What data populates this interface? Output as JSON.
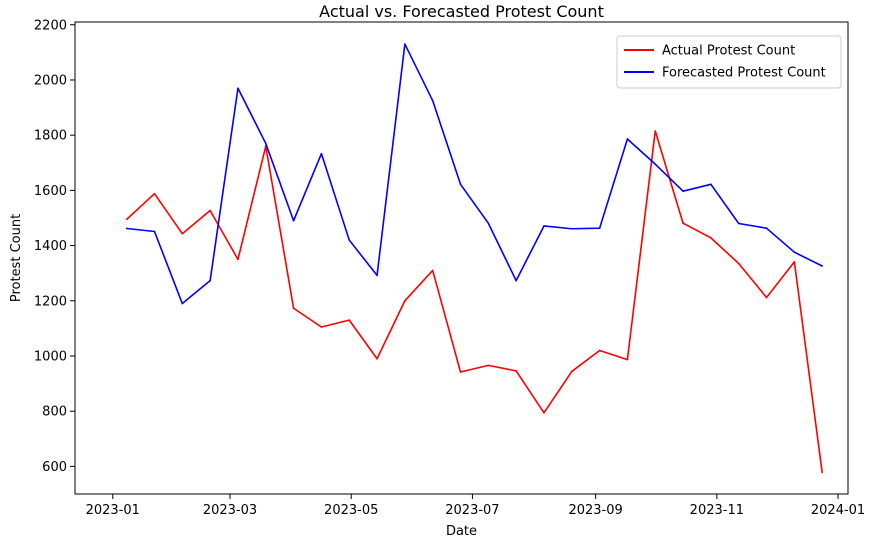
{
  "chart_data": {
    "type": "line",
    "title": "Actual vs. Forecasted Protest Count",
    "xlabel": "Date",
    "ylabel": "Protest Count",
    "x_ticks": [
      "2023-01",
      "2023-03",
      "2023-05",
      "2023-07",
      "2023-09",
      "2023-11",
      "2024-01"
    ],
    "y_ticks": [
      600,
      800,
      1000,
      1200,
      1400,
      1600,
      1800,
      2000,
      2200
    ],
    "xlim": [
      "2022-12-13",
      "2024-01-06"
    ],
    "ylim": [
      500,
      2210
    ],
    "grid": false,
    "legend_position": "top-right",
    "x": [
      "2023-01-08",
      "2023-01-22",
      "2023-02-05",
      "2023-02-19",
      "2023-03-05",
      "2023-03-19",
      "2023-04-02",
      "2023-04-16",
      "2023-04-30",
      "2023-05-14",
      "2023-05-28",
      "2023-06-11",
      "2023-06-25",
      "2023-07-09",
      "2023-07-23",
      "2023-08-06",
      "2023-08-20",
      "2023-09-03",
      "2023-09-17",
      "2023-10-01",
      "2023-10-15",
      "2023-10-29",
      "2023-11-12",
      "2023-11-26",
      "2023-12-10",
      "2023-12-24"
    ],
    "series": [
      {
        "name": "Actual Protest Count",
        "color": "#ff0000",
        "values": [
          1495,
          1588,
          1443,
          1527,
          1350,
          1760,
          1173,
          1105,
          1130,
          990,
          1200,
          1310,
          942,
          966,
          946,
          794,
          944,
          1020,
          987,
          1815,
          1481,
          1428,
          1335,
          1212,
          1341,
          578
        ]
      },
      {
        "name": "Forecasted Protest Count",
        "color": "#0000ff",
        "values": [
          1462,
          1451,
          1190,
          1273,
          1970,
          1770,
          1490,
          1733,
          1420,
          1292,
          2130,
          1925,
          1622,
          1481,
          1273,
          1471,
          1461,
          1463,
          1786,
          1695,
          1597,
          1622,
          1480,
          1463,
          1376,
          1326
        ]
      }
    ]
  }
}
